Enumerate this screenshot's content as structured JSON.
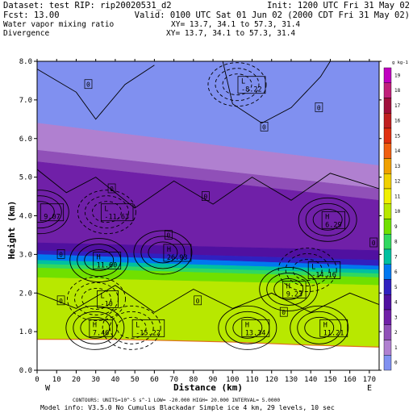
{
  "header": {
    "dataset_line": "Dataset: test  RIP: rip20020531_d2",
    "init_line": "Init: 1200 UTC Fri 31 May 02",
    "fcst_line": "Fcst:   13.00",
    "valid_line": "Valid: 0100 UTC Sat 01 Jun 02 (2000 CDT Fri 31 May 02)",
    "field1_name": "Water vapor mixing ratio",
    "xy1_line": "XY=   13.7, 34.1 to  57.3, 31.4",
    "field2_name": "Divergence",
    "xy2_line": "XY=  13.7, 34.1 to  57.3, 31.4"
  },
  "footer": {
    "contours_line": "CONTOURS:  UNITS=10^-5 s^-1   LOW= -20.000        HIGH= 20.000        INTERVAL=  5.0000",
    "model_line": "Model info: V3.5.0 No Cumulus Blackadar  Simple ice    4 km,  29 levels,  10 sec"
  },
  "endpoints": {
    "left": "W",
    "right": "E"
  },
  "colors": {
    "terrain": "#ffffff",
    "contour": "#000000"
  },
  "chart_data": {
    "type": "heatmap",
    "xlabel": "Distance (km)",
    "ylabel": "Height (km)",
    "xlim": [
      0,
      175
    ],
    "ylim": [
      0,
      8
    ],
    "x_ticks": [
      0,
      10,
      20,
      30,
      40,
      50,
      60,
      70,
      80,
      90,
      100,
      110,
      120,
      130,
      140,
      150,
      160,
      170
    ],
    "x_tick_labels": [
      "0",
      "10",
      "20",
      "30",
      "40",
      "50",
      "60",
      "70",
      "80",
      "90",
      "100",
      "110",
      "120",
      "130",
      "140",
      "150",
      "160",
      "170"
    ],
    "y_ticks": [
      0,
      1,
      2,
      3,
      4,
      5,
      6,
      7,
      8
    ],
    "y_tick_labels": [
      "0.0",
      "1.0",
      "2.0",
      "3.0",
      "4.0",
      "5.0",
      "6.0",
      "7.0",
      "8.0"
    ],
    "colorbar": {
      "units": "g kg-1",
      "levels": [
        19,
        18,
        17,
        16,
        15,
        14,
        13,
        12,
        11,
        10,
        9,
        8,
        7,
        6,
        5,
        4,
        3,
        2,
        1,
        0
      ],
      "colors": [
        "#c000c0",
        "#c0207a",
        "#a0103c",
        "#c02020",
        "#e03010",
        "#f06010",
        "#f0a000",
        "#f0d000",
        "#f0f000",
        "#b8e800",
        "#70e000",
        "#30d860",
        "#00c0a0",
        "#0078f0",
        "#3020c0",
        "#5010a0",
        "#7020a8",
        "#9050b8",
        "#b080d0",
        "#8090f0"
      ]
    },
    "shading_layers": [
      {
        "label": "0",
        "top_left": 8.0,
        "top_right": 8.0,
        "bottom_left": 6.4,
        "bottom_right": 5.3,
        "color": "#8090f0"
      },
      {
        "label": "1",
        "top_left": 6.4,
        "top_right": 5.3,
        "bottom_left": 5.7,
        "bottom_right": 4.7,
        "color": "#b080d0"
      },
      {
        "label": "2",
        "top_left": 5.7,
        "top_right": 4.7,
        "bottom_left": 5.4,
        "bottom_right": 4.4,
        "color": "#9050b8"
      },
      {
        "label": "3",
        "top_left": 5.4,
        "top_right": 4.4,
        "bottom_left": 3.3,
        "bottom_right": 3.1,
        "color": "#7020a8"
      },
      {
        "label": "4",
        "top_left": 3.3,
        "top_right": 3.1,
        "bottom_left": 3.1,
        "bottom_right": 2.85,
        "color": "#5010a0"
      },
      {
        "label": "5",
        "top_left": 3.1,
        "top_right": 2.85,
        "bottom_left": 3.0,
        "bottom_right": 2.7,
        "color": "#3020c0"
      },
      {
        "label": "6",
        "top_left": 3.0,
        "top_right": 2.7,
        "bottom_left": 2.85,
        "bottom_right": 2.6,
        "color": "#0078f0"
      },
      {
        "label": "7",
        "top_left": 2.85,
        "top_right": 2.6,
        "bottom_left": 2.75,
        "bottom_right": 2.5,
        "color": "#00c0a0"
      },
      {
        "label": "8",
        "top_left": 2.75,
        "top_right": 2.5,
        "bottom_left": 2.65,
        "bottom_right": 2.4,
        "color": "#30d860"
      },
      {
        "label": "9",
        "top_left": 2.65,
        "top_right": 2.4,
        "bottom_left": 2.4,
        "bottom_right": 2.2,
        "color": "#70e000"
      },
      {
        "label": "10",
        "top_left": 2.4,
        "top_right": 2.2,
        "bottom_left": 0.0,
        "bottom_right": 0.0,
        "color": "#b8e800"
      }
    ],
    "terrain_profile": [
      [
        0,
        0.8
      ],
      [
        40,
        0.8
      ],
      [
        100,
        0.73
      ],
      [
        140,
        0.65
      ],
      [
        175,
        0.6
      ]
    ],
    "contour_labels": [
      {
        "text": "L",
        "value": "-8.22",
        "x": 104,
        "y": 7.4
      },
      {
        "text": "L",
        "value": "-11.63",
        "x": 34,
        "y": 4.1
      },
      {
        "text": "",
        "value": "9.07",
        "x": 3,
        "y": 4.1
      },
      {
        "text": "H",
        "value": "6.29",
        "x": 147,
        "y": 3.9
      },
      {
        "text": "H",
        "value": "26.93",
        "x": 66,
        "y": 3.05
      },
      {
        "text": "H",
        "value": "11.60",
        "x": 30,
        "y": 2.85
      },
      {
        "text": "L",
        "value": "-14.16",
        "x": 140,
        "y": 2.6
      },
      {
        "text": "H",
        "value": "9.23",
        "x": 127,
        "y": 2.1
      },
      {
        "text": "L",
        "value": "-10",
        "x": 32,
        "y": 1.85
      },
      {
        "text": "H",
        "value": "7.46",
        "x": 28,
        "y": 1.1
      },
      {
        "text": "L",
        "value": "-15.22",
        "x": 50,
        "y": 1.1
      },
      {
        "text": "H",
        "value": "13.34",
        "x": 106,
        "y": 1.1
      },
      {
        "text": "H",
        "value": "11.21",
        "x": 146,
        "y": 1.1
      }
    ],
    "zero_labels": [
      {
        "x": 26,
        "y": 7.4
      },
      {
        "x": 144,
        "y": 6.8
      },
      {
        "x": 116,
        "y": 6.3
      },
      {
        "x": 38,
        "y": 4.7
      },
      {
        "x": 86,
        "y": 4.5
      },
      {
        "x": 12,
        "y": 3.0
      },
      {
        "x": 67,
        "y": 3.5
      },
      {
        "x": 172,
        "y": 3.3
      },
      {
        "x": 12,
        "y": 1.8
      },
      {
        "x": 82,
        "y": 1.8
      },
      {
        "x": 126,
        "y": 1.5
      }
    ]
  }
}
